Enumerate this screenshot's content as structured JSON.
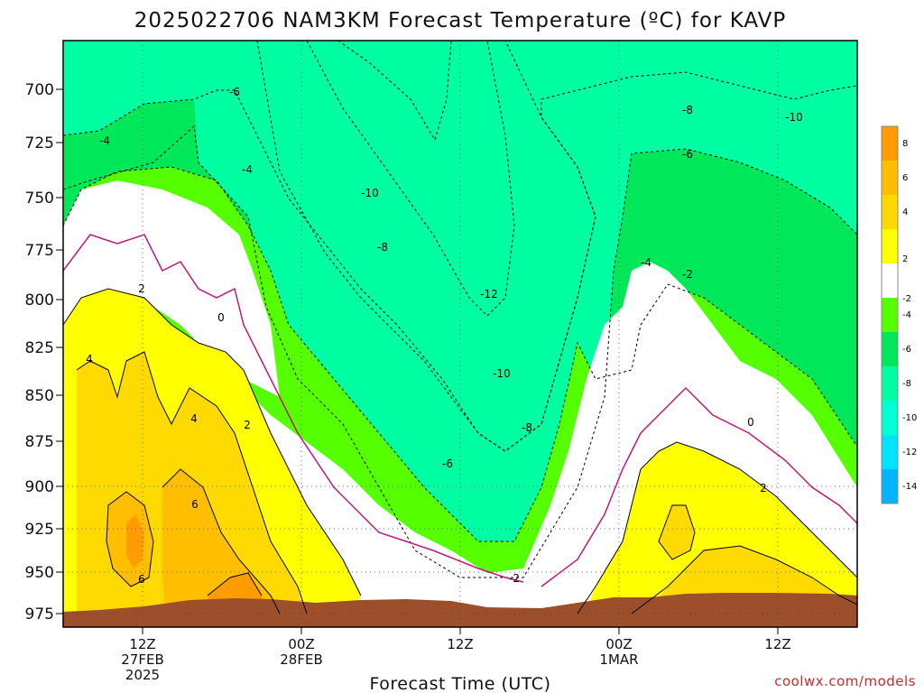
{
  "chart_data": {
    "type": "heatmap",
    "title": "2025022706 NAM3KM Forecast Temperature (ºC) for KAVP",
    "xlabel": "Forecast Time (UTC)",
    "ylabel": "",
    "y_axis": {
      "scale": "pressure (inverted)",
      "ticks": [
        "700",
        "725",
        "750",
        "775",
        "800",
        "825",
        "850",
        "875",
        "900",
        "925",
        "950",
        "975"
      ]
    },
    "x_axis": {
      "ticks": [
        {
          "line1": "12Z",
          "line2": "27FEB",
          "line3": "2025"
        },
        {
          "line1": "00Z",
          "line2": "28FEB",
          "line3": ""
        },
        {
          "line1": "12Z",
          "line2": "",
          "line3": ""
        },
        {
          "line1": "00Z",
          "line2": "1MAR",
          "line3": ""
        },
        {
          "line1": "12Z",
          "line2": "",
          "line3": ""
        }
      ]
    },
    "colorbar": {
      "labels": [
        "8",
        "6",
        "4",
        "2",
        "-2",
        "-4",
        "-6",
        "-8",
        "-10",
        "-12",
        "-14"
      ],
      "colors": [
        "#ff9c00",
        "#ffbe00",
        "#ffda00",
        "#ffff00",
        "#ffffff",
        "#55ff00",
        "#00e85a",
        "#00ffa2",
        "#00ffd4",
        "#00e4ff",
        "#00b4ff"
      ]
    },
    "contour_labels": [
      "-4",
      "-6",
      "-4",
      "0",
      "2",
      "4",
      "4",
      "2",
      "6",
      "6",
      "-10",
      "-8",
      "-12",
      "-10",
      "-8",
      "-6",
      "-2",
      "-8",
      "-6",
      "-10",
      "-4",
      "-2",
      "0",
      "2"
    ],
    "grid": true,
    "legend": "colorbar right"
  },
  "credit": "coolwx.com/models"
}
